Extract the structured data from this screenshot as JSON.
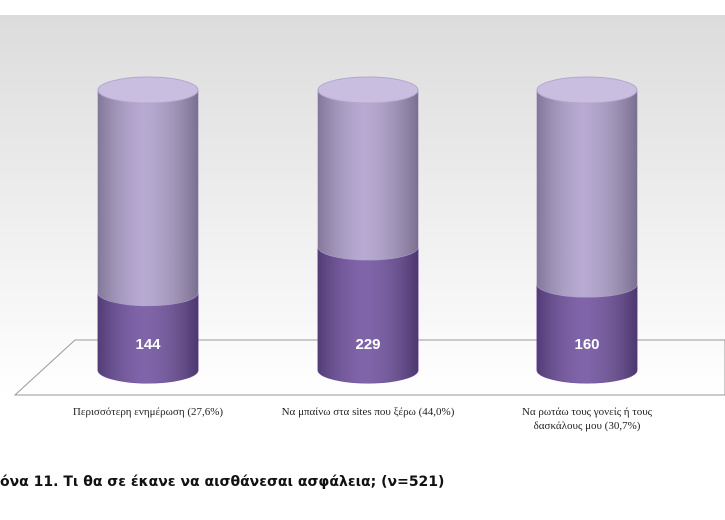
{
  "chart_data": {
    "type": "stacked-cylinder",
    "caption": "όνα 11. Τι θα σε έκανε να αισθάνεσαι ασφάλεια; (ν=521)",
    "categories": [
      "Περισσότερη ενημέρωση (27,6%)",
      "Να μπαίνω στα sites που ξέρω (44,0%)",
      "Να ρωτάω τους γονείς ή τους δασκάλους μου (30,7%)"
    ],
    "series": [
      {
        "color": "#6e4f9e",
        "values": [
          144,
          229,
          160
        ]
      },
      {
        "color": "#ae9fcc",
        "values": [
          377,
          292,
          361
        ]
      }
    ]
  }
}
